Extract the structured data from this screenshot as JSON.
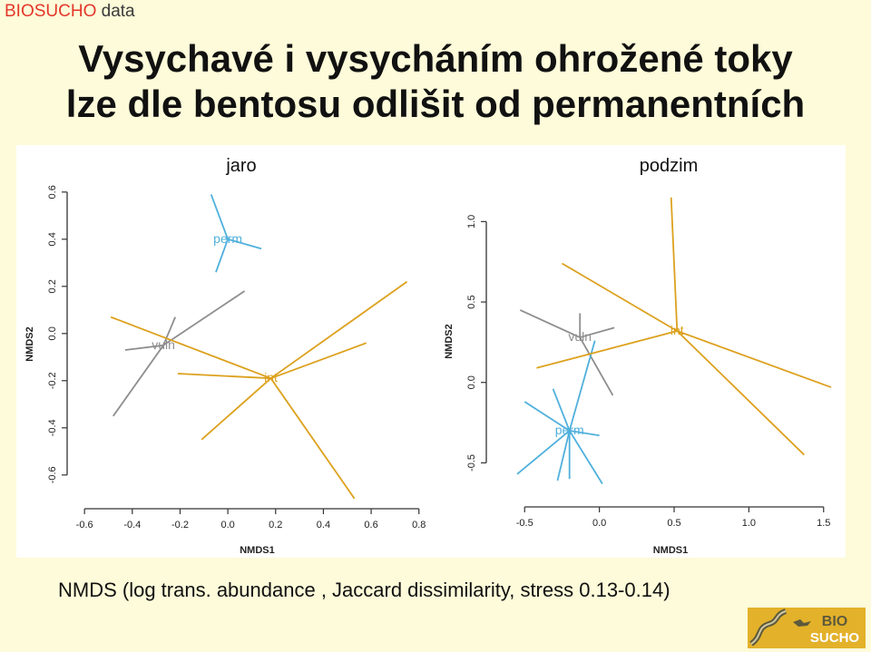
{
  "header": {
    "brand": "BIOSUCHO",
    "suffix": "data"
  },
  "title": {
    "line1": "Vysychavé i vysycháním ohrožené toky",
    "line2": "lze dle bentosu odlišit od permanentních"
  },
  "caption": "NMDS (log trans. abundance , Jaccard dissimilarity, stress 0.13-0.14)",
  "logo": {
    "text_top": "BIO",
    "text_bottom": "SUCHO"
  },
  "colors": {
    "perm": "#4fb0dc",
    "vuln": "#8e8e8e",
    "int": "#dca11e",
    "background": "#fdfbd9",
    "brand": "#e4362a"
  },
  "chart_data": [
    {
      "type": "scatter",
      "subtitle": "jaro",
      "xlabel": "NMDS1",
      "ylabel": "NMDS2",
      "xlim": [
        -0.65,
        0.82
      ],
      "ylim": [
        -0.72,
        0.63
      ],
      "xticks": [
        "-0.6",
        "-0.4",
        "-0.2",
        "0.0",
        "0.2",
        "0.4",
        "0.6",
        "0.8"
      ],
      "yticks": [
        "-0.6",
        "-0.4",
        "-0.2",
        "0.0",
        "0.2",
        "0.4",
        "0.6"
      ],
      "groups": [
        {
          "name": "perm",
          "centroid": [
            0.0,
            0.4
          ],
          "points": [
            [
              -0.07,
              0.59
            ],
            [
              0.14,
              0.36
            ],
            [
              -0.05,
              0.26
            ]
          ]
        },
        {
          "name": "vuln",
          "centroid": [
            -0.27,
            -0.05
          ],
          "points": [
            [
              0.07,
              0.18
            ],
            [
              -0.43,
              -0.07
            ],
            [
              -0.48,
              -0.35
            ],
            [
              -0.22,
              0.07
            ]
          ]
        },
        {
          "name": "int",
          "centroid": [
            0.18,
            -0.19
          ],
          "points": [
            [
              -0.49,
              0.07
            ],
            [
              0.75,
              0.22
            ],
            [
              0.58,
              -0.04
            ],
            [
              -0.21,
              -0.17
            ],
            [
              -0.11,
              -0.45
            ],
            [
              0.53,
              -0.7
            ]
          ]
        }
      ]
    },
    {
      "type": "scatter",
      "subtitle": "podzim",
      "xlabel": "NMDS1",
      "ylabel": "NMDS2",
      "xlim": [
        -0.72,
        1.55
      ],
      "ylim": [
        -0.74,
        1.25
      ],
      "xticks": [
        "-0.5",
        "0.0",
        "0.5",
        "1.0",
        "1.5"
      ],
      "yticks": [
        "-0.5",
        "0.0",
        "0.5",
        "1.0"
      ],
      "groups": [
        {
          "name": "vuln",
          "centroid": [
            -0.13,
            0.28
          ],
          "points": [
            [
              -0.53,
              0.45
            ],
            [
              0.1,
              0.34
            ],
            [
              -0.13,
              0.43
            ],
            [
              0.09,
              -0.08
            ]
          ]
        },
        {
          "name": "perm",
          "centroid": [
            -0.2,
            -0.3
          ],
          "points": [
            [
              -0.03,
              0.26
            ],
            [
              -0.5,
              -0.12
            ],
            [
              -0.55,
              -0.57
            ],
            [
              -0.31,
              -0.04
            ],
            [
              -0.28,
              -0.61
            ],
            [
              -0.2,
              -0.6
            ],
            [
              0.02,
              -0.63
            ],
            [
              0.0,
              -0.33
            ]
          ]
        },
        {
          "name": "int",
          "centroid": [
            0.52,
            0.32
          ],
          "points": [
            [
              -0.42,
              0.09
            ],
            [
              0.48,
              1.15
            ],
            [
              1.55,
              -0.03
            ],
            [
              1.37,
              -0.45
            ],
            [
              -0.25,
              0.74
            ]
          ]
        }
      ]
    }
  ]
}
